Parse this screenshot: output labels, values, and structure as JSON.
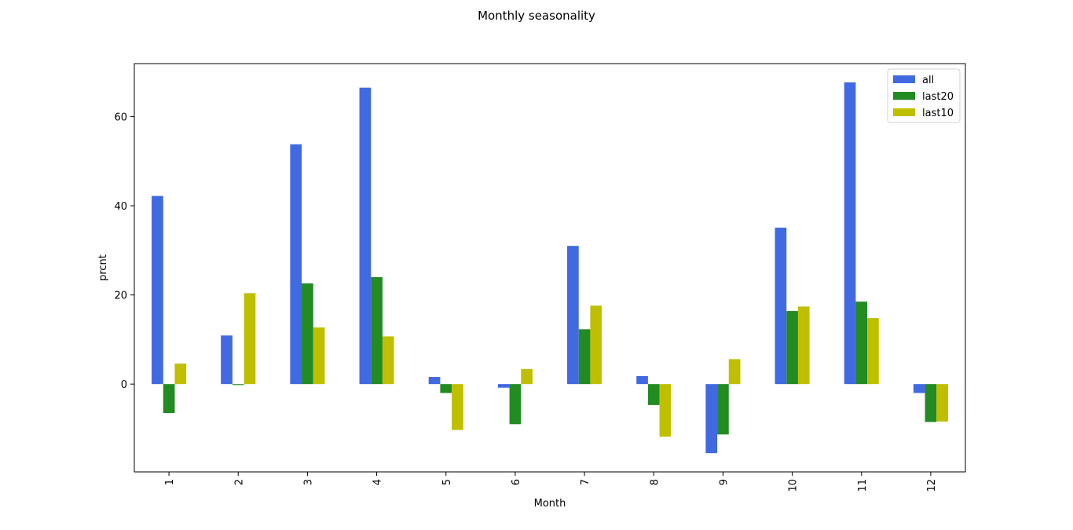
{
  "chart_data": {
    "type": "bar",
    "title": "Monthly seasonality",
    "xlabel": "Month",
    "ylabel": "prcnt",
    "categories": [
      "1",
      "2",
      "3",
      "4",
      "5",
      "6",
      "7",
      "8",
      "9",
      "10",
      "11",
      "12"
    ],
    "series": [
      {
        "name": "all",
        "color": "#4169e1",
        "values": [
          42.2,
          10.9,
          53.8,
          66.5,
          1.6,
          -0.8,
          31.0,
          1.8,
          -15.5,
          35.1,
          67.7,
          -2.0
        ]
      },
      {
        "name": "last20",
        "color": "#228b22",
        "values": [
          -6.5,
          -0.2,
          22.6,
          24.0,
          -2.0,
          -9.0,
          12.3,
          -4.7,
          -11.3,
          16.4,
          18.5,
          -8.5
        ]
      },
      {
        "name": "last10",
        "color": "#bfbf00",
        "values": [
          4.6,
          20.4,
          12.7,
          10.7,
          -10.3,
          3.4,
          17.6,
          -11.8,
          5.6,
          17.4,
          14.8,
          -8.4
        ]
      }
    ],
    "ylim": [
      -19.7,
      71.9
    ],
    "yticks": [
      0,
      20,
      40,
      60
    ],
    "legend": "top-right",
    "grid": false,
    "xtick_rotation": 90
  }
}
